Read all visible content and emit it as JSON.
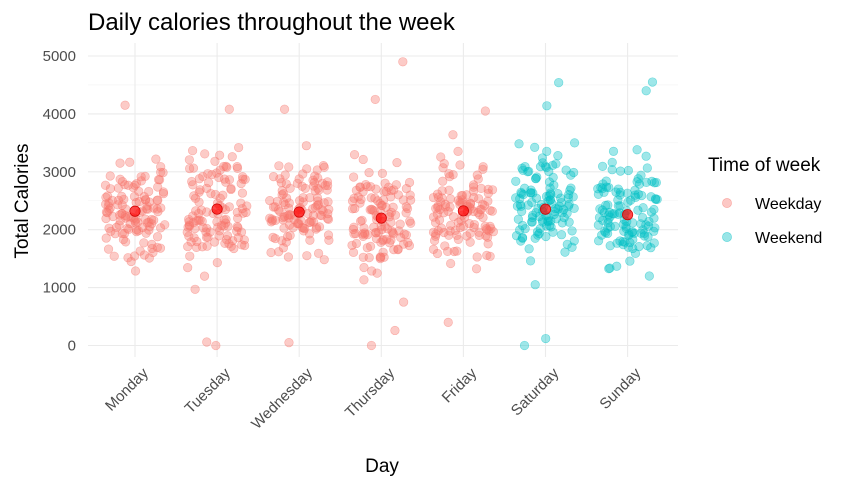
{
  "chart_data": {
    "type": "scatter",
    "title": "Daily calories throughout the week",
    "xlabel": "Day",
    "ylabel": "Total Calories",
    "categories": [
      "Monday",
      "Tuesday",
      "Wednesday",
      "Thursday",
      "Friday",
      "Saturday",
      "Sunday"
    ],
    "ylim": [
      -200,
      5100
    ],
    "yticks": [
      0,
      1000,
      2000,
      3000,
      4000,
      5000
    ],
    "grid": true,
    "legend": {
      "title": "Time of week",
      "position": "right",
      "entries": [
        {
          "label": "Weekday",
          "color": "#F8766D"
        },
        {
          "label": "Weekend",
          "color": "#00BFC4"
        }
      ]
    },
    "mean_color": "#FF0000",
    "series": [
      {
        "name": "Weekday",
        "color": "#F8766D",
        "days": [
          "Monday",
          "Tuesday",
          "Wednesday",
          "Thursday",
          "Friday"
        ],
        "means": [
          2320,
          2356,
          2305,
          2200,
          2325
        ],
        "extreme_points": [
          {
            "day": "Tuesday",
            "value": 60
          },
          {
            "day": "Tuesday",
            "value": 0
          },
          {
            "day": "Wednesday",
            "value": 50
          },
          {
            "day": "Thursday",
            "value": 0
          },
          {
            "day": "Thursday",
            "value": 260
          },
          {
            "day": "Thursday",
            "value": 4900
          },
          {
            "day": "Thursday",
            "value": 750
          },
          {
            "day": "Friday",
            "value": 400
          },
          {
            "day": "Monday",
            "value": 4150
          },
          {
            "day": "Tuesday",
            "value": 4080
          },
          {
            "day": "Wednesday",
            "value": 4080
          },
          {
            "day": "Thursday",
            "value": 4250
          },
          {
            "day": "Friday",
            "value": 4050
          }
        ]
      },
      {
        "name": "Weekend",
        "color": "#00BFC4",
        "days": [
          "Saturday",
          "Sunday"
        ],
        "means": [
          2355,
          2260
        ],
        "extreme_points": [
          {
            "day": "Saturday",
            "value": 0
          },
          {
            "day": "Saturday",
            "value": 120
          },
          {
            "day": "Saturday",
            "value": 1050
          },
          {
            "day": "Saturday",
            "value": 4540
          },
          {
            "day": "Saturday",
            "value": 4140
          },
          {
            "day": "Sunday",
            "value": 4550
          },
          {
            "day": "Sunday",
            "value": 4400
          },
          {
            "day": "Sunday",
            "value": 1200
          }
        ]
      }
    ]
  }
}
